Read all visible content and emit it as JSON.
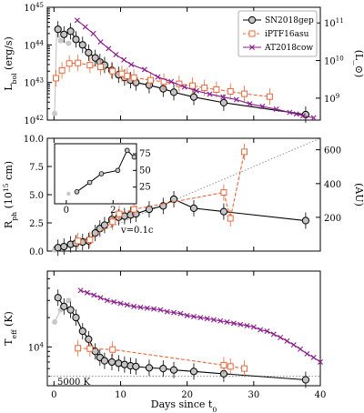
{
  "chart_data": {
    "type": "line",
    "xlabel": "Days since t_0",
    "xlim": [
      -1,
      40
    ],
    "xticks": [
      0,
      10,
      20,
      30,
      40
    ],
    "colors": {
      "SN2018gep": "#000000",
      "iPTF16asu": "#e8683c",
      "AT2018cow": "#8b1a8b",
      "early": "#c8c8c8",
      "ref": "#888888"
    },
    "panels": [
      {
        "id": "lbol",
        "ylabel": "L_bol (erg/s)",
        "ylabel_right": "(L_⊙)",
        "yscale": "log",
        "ylim": [
          1e+42,
          1e+45
        ],
        "yticks": [
          1e+42,
          1e+43,
          1e+44,
          1e+45
        ],
        "ytick_labels": [
          "10^42",
          "10^43",
          "10^44",
          "10^45"
        ],
        "right_ticks": [
          {
            "value": 3.83e+42,
            "label": "10^9"
          },
          {
            "value": 3.83e+43,
            "label": "10^10"
          },
          {
            "value": 3.83e+44,
            "label": "10^11"
          }
        ],
        "legend": [
          "SN2018gep",
          "iPTF16asu",
          "AT2018cow"
        ],
        "series": [
          {
            "name": "SN2018gep",
            "marker": "circle",
            "early": [
              [
                0.1,
                1.5e+42
              ],
              [
                0.4,
                2.6e+44
              ],
              [
                1.0,
                1.3e+44
              ],
              [
                2.2,
                1.1e+44
              ]
            ],
            "points": [
              [
                0.6,
                2.6e+44
              ],
              [
                1.5,
                1.9e+44
              ],
              [
                2.5,
                2.3e+44
              ],
              [
                3.3,
                1.4e+44
              ],
              [
                4.3,
                1e+44
              ],
              [
                5.2,
                6.2e+43
              ],
              [
                6.2,
                4.5e+43
              ],
              [
                6.9,
                3.5e+43
              ],
              [
                7.6,
                2.9e+43
              ],
              [
                8.7,
                2.1e+43
              ],
              [
                9.7,
                1.6e+43
              ],
              [
                10.6,
                1.35e+43
              ],
              [
                11.5,
                1.15e+43
              ],
              [
                12.3,
                1e+43
              ],
              [
                14.3,
                8.5e+42
              ],
              [
                16.4,
                6.8e+42
              ],
              [
                18.0,
                5.5e+42
              ],
              [
                21.0,
                4.1e+42
              ],
              [
                25.5,
                2.9e+42
              ],
              [
                37.8,
                1.4e+42
              ]
            ]
          },
          {
            "name": "iPTF16asu",
            "marker": "square",
            "points": [
              [
                0.3,
                1.3e+43
              ],
              [
                1.2,
                2.1e+43
              ],
              [
                2.3,
                3.2e+43
              ],
              [
                3.6,
                3.3e+43
              ],
              [
                5.4,
                2.9e+43
              ],
              [
                7.0,
                2.6e+43
              ],
              [
                8.8,
                2e+43
              ],
              [
                10.2,
                1.7e+43
              ],
              [
                11.0,
                1.5e+43
              ],
              [
                12.0,
                1.35e+43
              ],
              [
                14.5,
                1.15e+43
              ],
              [
                16.5,
                1.05e+43
              ],
              [
                18.8,
                9.2e+42
              ],
              [
                20.8,
                8.2e+42
              ],
              [
                22.6,
                7.2e+42
              ],
              [
                24.4,
                6.5e+42
              ],
              [
                26.5,
                5.8e+42
              ],
              [
                28.6,
                5e+42
              ],
              [
                32.4,
                4.2e+42
              ]
            ]
          },
          {
            "name": "AT2018cow",
            "marker": "x",
            "points": [
              [
                3.5,
                4.5e+44
              ],
              [
                4.7,
                3e+44
              ],
              [
                5.9,
                2e+44
              ],
              [
                7.0,
                1.2e+44
              ],
              [
                8.2,
                8e+43
              ],
              [
                9.3,
                5.5e+43
              ],
              [
                10.5,
                4e+43
              ],
              [
                11.6,
                3e+43
              ],
              [
                13.6,
                2.2e+43
              ],
              [
                15.6,
                1.4e+43
              ],
              [
                17.6,
                1.05e+43
              ],
              [
                19.6,
                7.6e+42
              ],
              [
                21.4,
                6e+42
              ],
              [
                23.4,
                4.9e+42
              ],
              [
                25.4,
                4.1e+42
              ],
              [
                27.4,
                3.5e+42
              ],
              [
                29.4,
                2.7e+42
              ],
              [
                31.3,
                2.3e+42
              ],
              [
                33.4,
                1.95e+42
              ],
              [
                35.4,
                1.6e+42
              ],
              [
                36.4,
                1.45e+42
              ],
              [
                37.4,
                1.3e+42
              ],
              [
                39.0,
                1.15e+42
              ]
            ]
          }
        ]
      },
      {
        "id": "rph",
        "ylabel": "R_ph (10^15 cm)",
        "ylabel_right": "(AU)",
        "yscale": "linear",
        "ylim": [
          0,
          10
        ],
        "yticks": [
          0,
          2.5,
          5.0,
          7.5,
          10.0
        ],
        "ytick_labels": [
          "0.0",
          "2.5",
          "5.0",
          "7.5",
          "10.0"
        ],
        "right_ticks": [
          {
            "value": 2.99,
            "label": "200"
          },
          {
            "value": 5.98,
            "label": "400"
          },
          {
            "value": 8.98,
            "label": "600"
          }
        ],
        "annotation": "v=0.1c",
        "ref_line": [
          [
            0,
            0
          ],
          [
            40,
            10.4
          ]
        ],
        "series": [
          {
            "name": "SN2018gep",
            "marker": "circle",
            "early": [
              [
                0.1,
                0.1
              ],
              [
                0.5,
                0.15
              ]
            ],
            "points": [
              [
                0.6,
                0.3
              ],
              [
                1.5,
                0.4
              ],
              [
                2.5,
                0.6
              ],
              [
                3.3,
                0.7
              ],
              [
                4.3,
                0.8
              ],
              [
                5.2,
                0.9
              ],
              [
                6.2,
                1.6
              ],
              [
                6.9,
                2.0
              ],
              [
                7.6,
                2.3
              ],
              [
                8.7,
                2.8
              ],
              [
                9.7,
                3.0
              ],
              [
                10.6,
                3.1
              ],
              [
                11.5,
                3.2
              ],
              [
                12.3,
                3.3
              ],
              [
                14.3,
                3.7
              ],
              [
                16.4,
                4.0
              ],
              [
                18.0,
                4.6
              ],
              [
                21.0,
                3.8
              ],
              [
                25.5,
                3.5
              ],
              [
                37.8,
                2.7
              ]
            ]
          },
          {
            "name": "iPTF16asu",
            "marker": "square",
            "points": [
              [
                3.6,
                0.9
              ],
              [
                5.4,
                1.0
              ],
              [
                8.8,
                2.6
              ],
              [
                9.8,
                3.3
              ],
              [
                12.0,
                3.7
              ],
              [
                25.5,
                5.2
              ],
              [
                26.5,
                2.9
              ],
              [
                28.6,
                8.8
              ]
            ]
          }
        ]
      },
      {
        "id": "teff",
        "ylabel": "T_eff (K)",
        "yscale": "log",
        "ylim": [
          4000,
          60000
        ],
        "yticks": [
          10000
        ],
        "ytick_labels": [
          "10^4"
        ],
        "annotation": "5000 K",
        "ref_value": 5000,
        "series": [
          {
            "name": "SN2018gep",
            "marker": "circle",
            "early": [
              [
                0.1,
                18000
              ],
              [
                1.0,
                24000
              ],
              [
                2.2,
                30000
              ]
            ],
            "points": [
              [
                0.6,
                32000
              ],
              [
                1.5,
                26000
              ],
              [
                2.5,
                24000
              ],
              [
                3.3,
                20000
              ],
              [
                4.3,
                14500
              ],
              [
                5.2,
                12000
              ],
              [
                6.2,
                9000
              ],
              [
                6.9,
                7800
              ],
              [
                7.6,
                7200
              ],
              [
                8.7,
                7000
              ],
              [
                9.7,
                6800
              ],
              [
                10.6,
                6600
              ],
              [
                11.5,
                6400
              ],
              [
                12.3,
                6300
              ],
              [
                14.3,
                6100
              ],
              [
                16.4,
                6000
              ],
              [
                18.0,
                5800
              ],
              [
                21.0,
                5600
              ],
              [
                25.5,
                5300
              ],
              [
                37.8,
                4600
              ]
            ]
          },
          {
            "name": "iPTF16asu",
            "marker": "square",
            "points": [
              [
                3.6,
                9700
              ],
              [
                5.4,
                9600
              ],
              [
                8.8,
                9400
              ],
              [
                25.5,
                6500
              ],
              [
                26.5,
                6300
              ],
              [
                28.6,
                6000
              ]
            ]
          },
          {
            "name": "AT2018cow",
            "marker": "x",
            "points": [
              [
                4.0,
                38000
              ],
              [
                5.0,
                36000
              ],
              [
                6.0,
                34000
              ],
              [
                7.0,
                32000
              ],
              [
                8.0,
                30000
              ],
              [
                9.0,
                29000
              ],
              [
                10.0,
                28000
              ],
              [
                11.0,
                27000
              ],
              [
                12.0,
                26000
              ],
              [
                13.0,
                25500
              ],
              [
                14.0,
                25000
              ],
              [
                15.0,
                24500
              ],
              [
                16.0,
                24000
              ],
              [
                17.0,
                23000
              ],
              [
                18.0,
                22500
              ],
              [
                19.0,
                22000
              ],
              [
                20.0,
                21000
              ],
              [
                21.0,
                20500
              ],
              [
                22.0,
                20000
              ],
              [
                23.0,
                19500
              ],
              [
                24.0,
                19000
              ],
              [
                25.0,
                18500
              ],
              [
                26.0,
                18000
              ],
              [
                27.0,
                17500
              ],
              [
                28.0,
                17000
              ],
              [
                29.0,
                16500
              ],
              [
                30.0,
                16000
              ],
              [
                31.0,
                15000
              ],
              [
                32.0,
                14500
              ],
              [
                33.0,
                13500
              ],
              [
                34.0,
                12500
              ],
              [
                35.0,
                11500
              ],
              [
                36.0,
                10500
              ],
              [
                37.0,
                9500
              ],
              [
                38.0,
                8500
              ],
              [
                39.0,
                7800
              ],
              [
                40.0,
                7000
              ]
            ]
          }
        ]
      }
    ],
    "inset": {
      "panel": "rph",
      "xlim": [
        -0.5,
        3
      ],
      "ylim": [
        0,
        90
      ],
      "xticks": [
        0,
        2
      ],
      "yticks": [
        25,
        50,
        75
      ],
      "series": [
        {
          "name": "SN2018gep",
          "early": [
            [
              0.1,
              15
            ],
            [
              0.45,
              18
            ]
          ],
          "points": [
            [
              0.45,
              18
            ],
            [
              1.0,
              32
            ],
            [
              1.5,
              45
            ],
            [
              2.2,
              50
            ],
            [
              2.6,
              80
            ],
            [
              2.9,
              70
            ]
          ]
        }
      ]
    }
  }
}
